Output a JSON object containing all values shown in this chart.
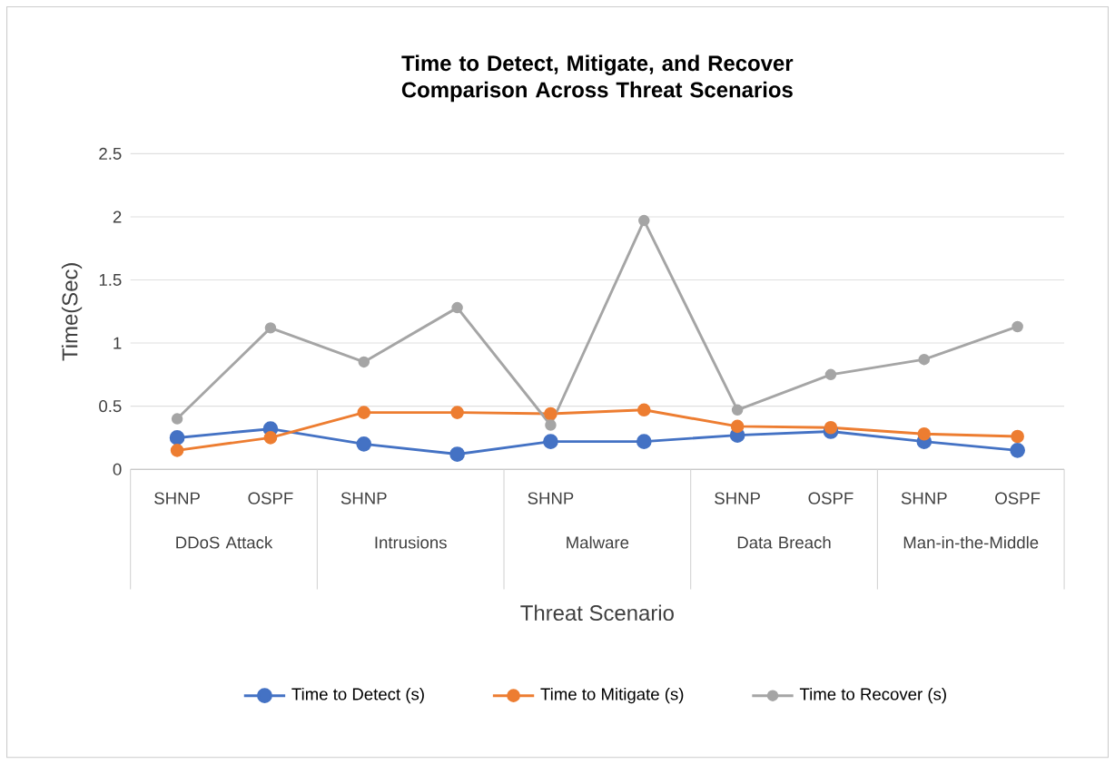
{
  "chart_data": {
    "type": "line",
    "title": "Time to Detect, Mitigate, and Recover Comparison Across Threat Scenarios",
    "xlabel": "Threat Scenario",
    "ylabel": "Time(Sec)",
    "categories": [
      "SHNP",
      "OSPF",
      "SHNP",
      null,
      "SHNP",
      null,
      "SHNP",
      "OSPF",
      "SHNP",
      "OSPF"
    ],
    "annotations": [
      "DDoS Attack",
      "Intrusions",
      "Malware",
      "Data Breach",
      "Man-in-the-Middle"
    ],
    "series": [
      {
        "name": "Time to Detect (s)",
        "color": "#4472c4",
        "values": [
          0.25,
          0.32,
          0.2,
          0.12,
          0.22,
          0.22,
          0.27,
          0.3,
          0.22,
          0.15
        ]
      },
      {
        "name": "Time to Mitigate (s)",
        "color": "#ed7d31",
        "values": [
          0.15,
          0.25,
          0.45,
          0.45,
          0.44,
          0.47,
          0.34,
          0.33,
          0.28,
          0.26
        ]
      },
      {
        "name": "Time to Recover (s)",
        "color": "#a5a5a5",
        "values": [
          0.4,
          1.12,
          0.85,
          1.28,
          0.35,
          1.97,
          0.47,
          0.75,
          0.87,
          1.13
        ]
      }
    ],
    "ylim": [
      0,
      2.5
    ],
    "yticks": [
      0,
      0.5,
      1,
      1.5,
      2,
      2.5
    ],
    "grid": "y",
    "legend": "bottom",
    "marker": "circle",
    "line_style": "solid"
  }
}
